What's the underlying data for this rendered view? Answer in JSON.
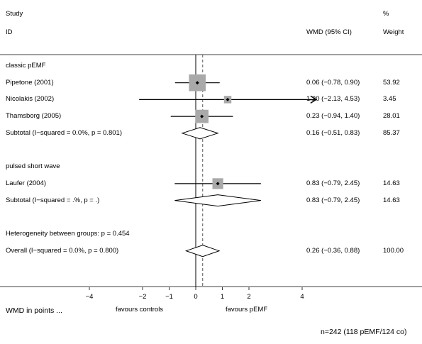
{
  "header": {
    "study_line1": "Study",
    "study_line2": "ID",
    "wmd_col": "WMD (95% CI)",
    "pct_line1": "%",
    "pct_line2": "Weight"
  },
  "chart_data": {
    "type": "forest",
    "x_axis": {
      "ticks": [
        -4,
        -2,
        -1,
        0,
        1,
        2,
        4
      ],
      "tick_labels": [
        "−4",
        "−2",
        "−1",
        "0",
        "1",
        "2",
        "4"
      ],
      "null_line": 0,
      "overall_line": 0.26,
      "range": [
        -4,
        4
      ]
    },
    "rows": [
      {
        "kind": "group",
        "label": "classic pEMF"
      },
      {
        "kind": "study",
        "label": "Pipetone (2001)",
        "est": 0.06,
        "lo": -0.78,
        "hi": 0.9,
        "ci_text": "0.06 (−0.78, 0.90)",
        "weight": "53.92",
        "arrow_right": false
      },
      {
        "kind": "study",
        "label": "Nicolakis (2002)",
        "est": 1.2,
        "lo": -2.13,
        "hi": 4.53,
        "ci_text": "1.20 (−2.13, 4.53)",
        "weight": "3.45",
        "arrow_right": true
      },
      {
        "kind": "study",
        "label": "Thamsborg (2005)",
        "est": 0.23,
        "lo": -0.94,
        "hi": 1.4,
        "ci_text": "0.23 (−0.94, 1.40)",
        "weight": "28.01",
        "arrow_right": false
      },
      {
        "kind": "subtotal",
        "label": "Subtotal  (I−squared = 0.0%, p = 0.801)",
        "est": 0.16,
        "lo": -0.51,
        "hi": 0.83,
        "ci_text": "0.16 (−0.51, 0.83)",
        "weight": "85.37"
      },
      {
        "kind": "blank"
      },
      {
        "kind": "group",
        "label": "pulsed short wave"
      },
      {
        "kind": "study",
        "label": "Laufer (2004)",
        "est": 0.83,
        "lo": -0.79,
        "hi": 2.45,
        "ci_text": "0.83 (−0.79, 2.45)",
        "weight": "14.63",
        "arrow_right": false
      },
      {
        "kind": "subtotal",
        "label": "Subtotal  (I−squared = .%, p = .)",
        "est": 0.83,
        "lo": -0.79,
        "hi": 2.45,
        "ci_text": "0.83 (−0.79, 2.45)",
        "weight": "14.63"
      },
      {
        "kind": "blank"
      },
      {
        "kind": "group",
        "label": "Heterogeneity between groups: p = 0.454"
      },
      {
        "kind": "overall",
        "label": "Overall  (I−squared = 0.0%, p = 0.800)",
        "est": 0.26,
        "lo": -0.36,
        "hi": 0.88,
        "ci_text": "0.26 (−0.36, 0.88)",
        "weight": "100.00"
      }
    ]
  },
  "footer": {
    "axis_title": "WMD in points ...",
    "favours_left": "favours controls",
    "favours_right": "favours pEMF",
    "sample_note": "n=242 (118 pEMF/124 co)"
  }
}
